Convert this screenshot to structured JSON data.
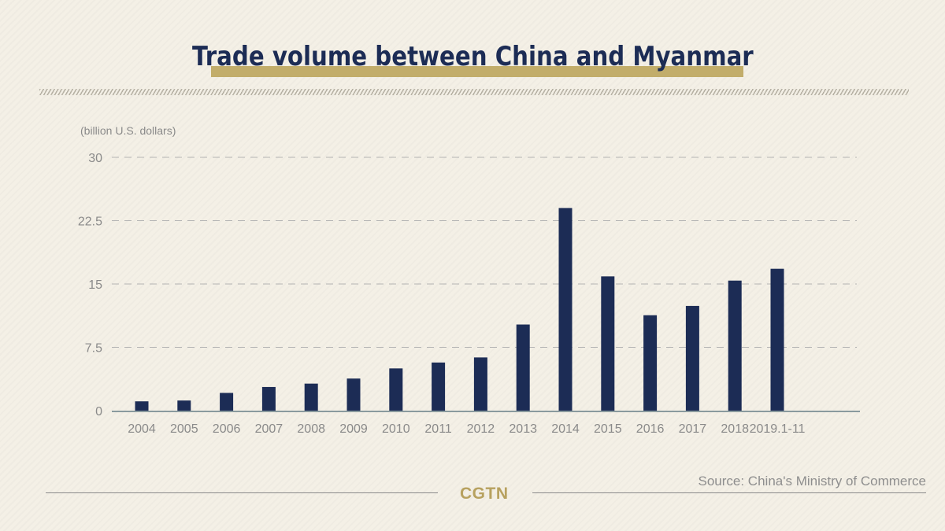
{
  "header": {
    "title": "Trade volume between China and Myanmar"
  },
  "chart_data": {
    "type": "bar",
    "title": "Trade volume between China and Myanmar",
    "ylabel": "(billion U.S. dollars)",
    "xlabel": "",
    "categories": [
      "2004",
      "2005",
      "2006",
      "2007",
      "2008",
      "2009",
      "2010",
      "2011",
      "2012",
      "2013",
      "2014",
      "2015",
      "2016",
      "2017",
      "2018",
      "2019.1-11"
    ],
    "values": [
      1.1,
      1.2,
      2.1,
      2.8,
      3.2,
      3.8,
      5.0,
      5.7,
      6.3,
      10.2,
      24.0,
      15.9,
      11.3,
      12.4,
      15.4,
      16.8
    ],
    "yticks": [
      "0",
      "7.5",
      "15",
      "22.5",
      "30"
    ],
    "ylim": [
      0,
      30
    ],
    "grid": true,
    "bar_color": "#1c2c55"
  },
  "footer": {
    "brand": "CGTN",
    "source": "Source: China's Ministry of Commerce"
  }
}
